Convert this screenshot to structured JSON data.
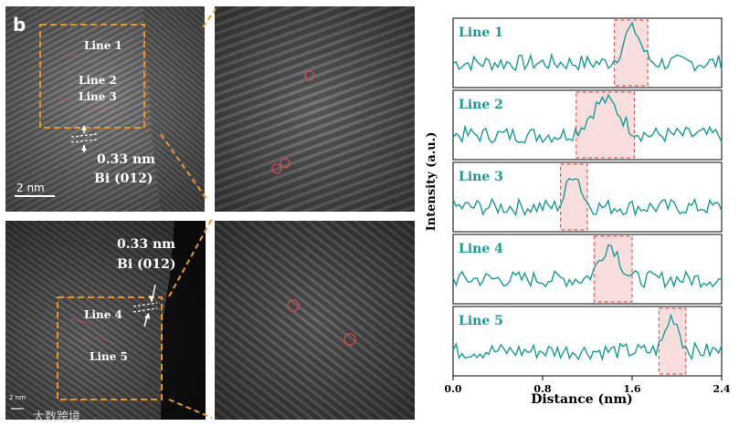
{
  "panel_label": "b",
  "top_tem": {
    "line_labels": [
      "Line 1",
      "Line 2",
      "Line 3"
    ],
    "spacing": "0.33 nm",
    "plane": "Bi (012)",
    "scale_bar": "2 nm"
  },
  "bottom_tem": {
    "line_labels": [
      "Line 4",
      "Line 5"
    ],
    "spacing": "0.33 nm",
    "plane": "Bi (012)",
    "scale_bar": "2 nm"
  },
  "watermark": "大数跨境",
  "colors": {
    "box_dash": "#e8962a",
    "profile_line": "#1a9c96",
    "highlight_fill": "#f9dede",
    "highlight_stroke": "#e25a5a",
    "marker_circle": "#d9485a"
  },
  "chart_data": {
    "type": "line",
    "xlabel": "Distance (nm)",
    "ylabel": "Intensity (a.u.)",
    "xlim": [
      0.0,
      2.4
    ],
    "xticks": [
      "0.0",
      "0.8",
      "1.6",
      "2.4"
    ],
    "series": [
      {
        "name": "Line 1",
        "peak_region": [
          1.44,
          1.74
        ],
        "peak_center": 1.6
      },
      {
        "name": "Line 2",
        "peak_region": [
          1.1,
          1.62
        ],
        "peak_center": 1.36
      },
      {
        "name": "Line 3",
        "peak_region": [
          0.96,
          1.2
        ],
        "peak_center": 1.08
      },
      {
        "name": "Line 4",
        "peak_region": [
          1.26,
          1.6
        ],
        "peak_center": 1.4
      },
      {
        "name": "Line 5",
        "peak_region": [
          1.84,
          2.08
        ],
        "peak_center": 1.96
      }
    ]
  }
}
